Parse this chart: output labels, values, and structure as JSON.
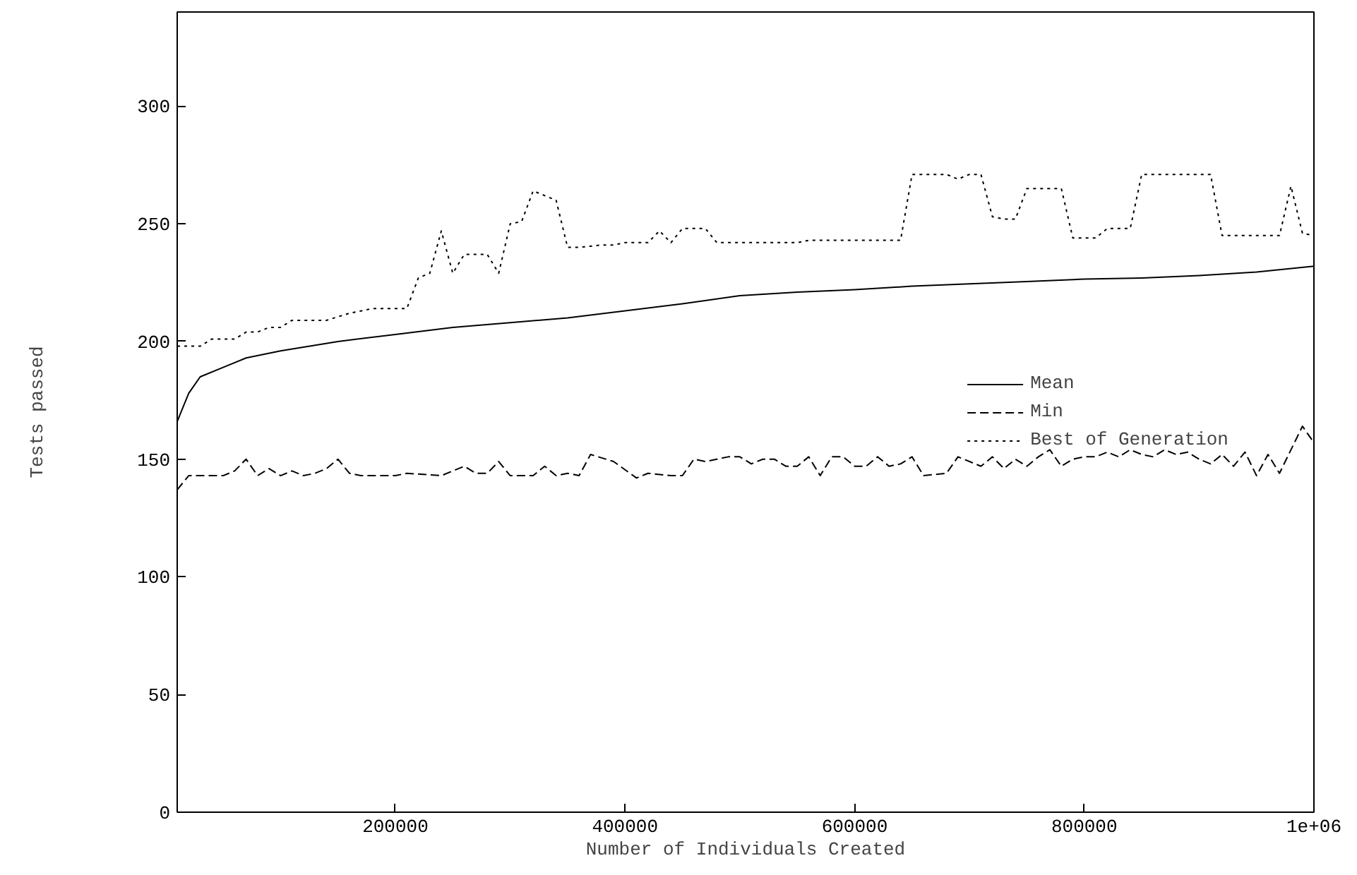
{
  "chart_data": {
    "type": "line",
    "xlabel": "Number of Individuals Created",
    "ylabel": "Tests passed",
    "xlim": [
      10000,
      1000000
    ],
    "ylim": [
      0,
      340
    ],
    "xticks": [
      200000,
      400000,
      600000,
      800000,
      {
        "value": 1000000,
        "label": "1e+06"
      }
    ],
    "yticks": [
      0,
      50,
      100,
      150,
      200,
      250,
      300
    ],
    "grid": false,
    "legend": "right",
    "marker": "none",
    "series": [
      {
        "name": "Mean",
        "color": "#000000",
        "line_style": "solid",
        "x": [
          10000,
          20000,
          30000,
          50000,
          70000,
          100000,
          150000,
          200000,
          250000,
          300000,
          350000,
          400000,
          450000,
          500000,
          550000,
          600000,
          650000,
          700000,
          750000,
          800000,
          850000,
          900000,
          950000,
          1000000
        ],
        "values": [
          166,
          178,
          185,
          189,
          193,
          196,
          200,
          203,
          206,
          208,
          210,
          213,
          216,
          219.5,
          221,
          222,
          223.5,
          224.5,
          225.5,
          226.5,
          227,
          228,
          229.5,
          232
        ]
      },
      {
        "name": "Min",
        "color": "#000000",
        "line_style": "dashed",
        "x": [
          10000,
          20000,
          30000,
          50000,
          60000,
          70000,
          80000,
          90000,
          100000,
          110000,
          120000,
          130000,
          140000,
          150000,
          160000,
          170000,
          200000,
          210000,
          240000,
          250000,
          260000,
          270000,
          280000,
          290000,
          300000,
          320000,
          330000,
          340000,
          350000,
          360000,
          370000,
          390000,
          410000,
          420000,
          440000,
          450000,
          460000,
          470000,
          490000,
          500000,
          510000,
          520000,
          530000,
          540000,
          550000,
          560000,
          570000,
          580000,
          590000,
          600000,
          610000,
          620000,
          630000,
          640000,
          650000,
          660000,
          680000,
          690000,
          710000,
          720000,
          730000,
          740000,
          750000,
          760000,
          770000,
          780000,
          790000,
          800000,
          810000,
          820000,
          830000,
          840000,
          850000,
          860000,
          870000,
          880000,
          890000,
          900000,
          910000,
          920000,
          930000,
          940000,
          950000,
          960000,
          970000,
          980000,
          990000,
          1000000
        ],
        "values": [
          137,
          143,
          143,
          143,
          145,
          150,
          143,
          146,
          143,
          145,
          143,
          144,
          146,
          150,
          144,
          143,
          143,
          144,
          143,
          145,
          147,
          144,
          144,
          149,
          143,
          143,
          147,
          143,
          144,
          143,
          152,
          149,
          142,
          144,
          143,
          143,
          150,
          149,
          151,
          151,
          148,
          150,
          150,
          147,
          147,
          151,
          143,
          151,
          151,
          147,
          147,
          151,
          147,
          148,
          151,
          143,
          144,
          151,
          147,
          151,
          146,
          150,
          147,
          151,
          154,
          147,
          150,
          151,
          151,
          153,
          151,
          154,
          152,
          151,
          154,
          152,
          153,
          150,
          148,
          152,
          147,
          153,
          143,
          152,
          144,
          154,
          164,
          157
        ]
      },
      {
        "name": "Best of Generation",
        "color": "#000000",
        "line_style": "dotted",
        "x": [
          10000,
          30000,
          40000,
          60000,
          70000,
          80000,
          90000,
          100000,
          110000,
          140000,
          160000,
          180000,
          210000,
          220000,
          230000,
          240000,
          250000,
          260000,
          280000,
          290000,
          300000,
          310000,
          320000,
          340000,
          350000,
          360000,
          380000,
          390000,
          400000,
          420000,
          430000,
          440000,
          450000,
          470000,
          480000,
          500000,
          550000,
          560000,
          640000,
          650000,
          680000,
          690000,
          700000,
          710000,
          720000,
          730000,
          740000,
          750000,
          780000,
          790000,
          810000,
          820000,
          840000,
          850000,
          910000,
          920000,
          960000,
          970000,
          980000,
          990000,
          1000000
        ],
        "values": [
          198,
          198,
          201,
          201,
          204,
          204,
          206,
          206,
          209,
          209,
          212,
          214,
          214,
          227,
          229,
          247,
          229,
          237,
          237,
          229,
          250,
          251,
          264,
          260,
          240,
          240,
          241,
          241,
          242,
          242,
          247,
          242,
          248,
          248,
          242,
          242,
          242,
          243,
          243,
          271,
          271,
          269,
          271,
          271,
          253,
          252,
          252,
          265,
          265,
          244,
          244,
          248,
          248,
          271,
          271,
          245,
          245,
          245,
          266,
          246,
          245
        ]
      }
    ]
  }
}
